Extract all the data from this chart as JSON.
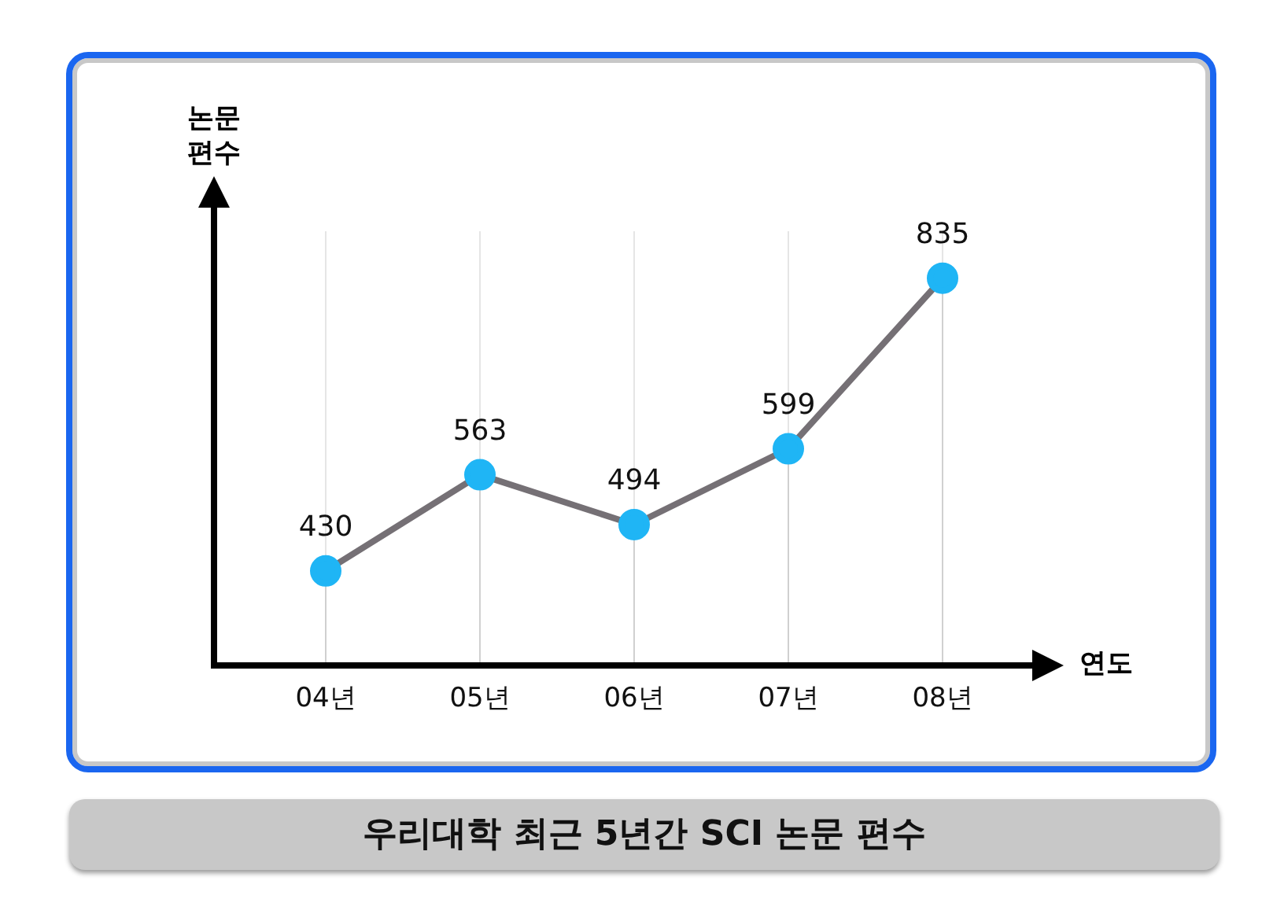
{
  "chart_data": {
    "type": "line",
    "title": "우리대학 최근 5년간 SCI 논문 편수",
    "xlabel": "연도",
    "ylabel": "논문 편수",
    "categories": [
      "04년",
      "05년",
      "06년",
      "07년",
      "08년"
    ],
    "series": [
      {
        "color": "#757075",
        "colors": [
          "#1fb5f5",
          "#1fb5f5",
          "#1fb5f5",
          "#1fb5f5",
          "#1fb5f5"
        ],
        "values": [
          430,
          563,
          494,
          599,
          835
        ]
      }
    ],
    "marker": "circle",
    "data_labels": true,
    "grid": "x",
    "legend": false
  }
}
